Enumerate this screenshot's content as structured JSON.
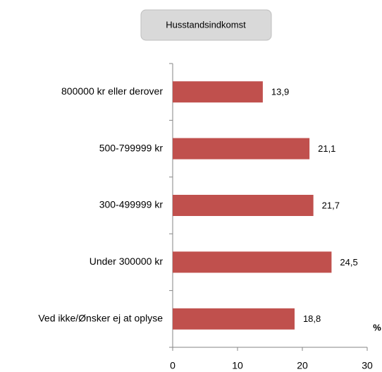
{
  "chart_data": {
    "type": "bar",
    "orientation": "horizontal",
    "title": "Husstandsindkomst",
    "categories": [
      "800000 kr eller derover",
      "500-799999 kr",
      "300-499999 kr",
      "Under 300000 kr",
      "Ved ikke/Ønsker ej at oplyse"
    ],
    "values": [
      13.9,
      21.1,
      21.7,
      24.5,
      18.8
    ],
    "value_labels": [
      "13,9",
      "21,1",
      "21,7",
      "24,5",
      "18,8"
    ],
    "color": "#c0504d",
    "xlabel": "%",
    "xlim": [
      0,
      30
    ],
    "xticks": [
      0,
      10,
      20,
      30
    ]
  }
}
